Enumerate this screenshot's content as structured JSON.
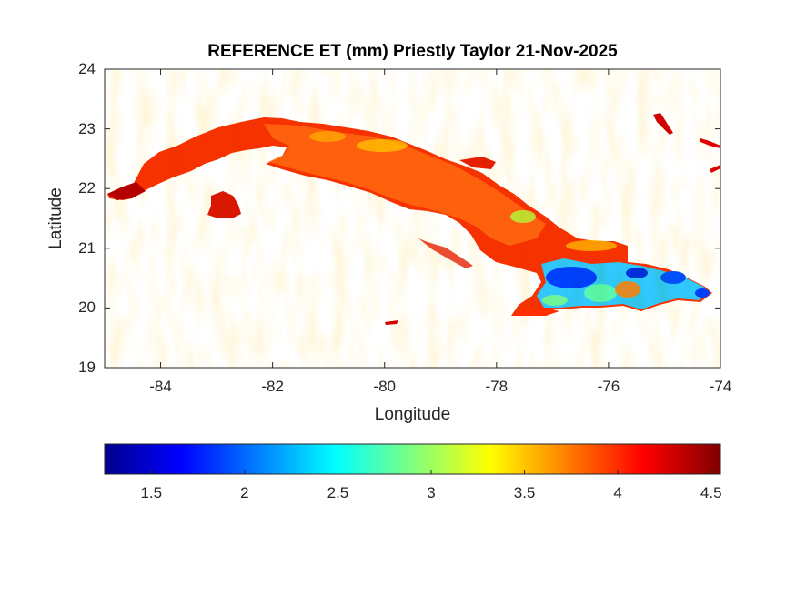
{
  "chart_data": {
    "type": "heatmap",
    "title": "REFERENCE ET (mm) Priestly Taylor 21-Nov-2025",
    "xlabel": "Longitude",
    "ylabel": "Latitude",
    "xlim": [
      -85,
      -74
    ],
    "ylim": [
      19,
      24
    ],
    "x_ticks": [
      "-84",
      "-82",
      "-80",
      "-78",
      "-76",
      "-74"
    ],
    "y_ticks": [
      "24",
      "23",
      "22",
      "21",
      "20",
      "19"
    ],
    "colorbar": {
      "orientation": "horizontal",
      "colormap": "jet",
      "range": [
        1.25,
        4.55
      ],
      "ticks": [
        "1.5",
        "2",
        "2.5",
        "3",
        "3.5",
        "4",
        "4.5"
      ]
    },
    "grid": false,
    "dominant_value_range_west_central": [
      3.9,
      4.5
    ],
    "low_value_region": "southeastern Cuba, values 1.3 to 2.8"
  }
}
